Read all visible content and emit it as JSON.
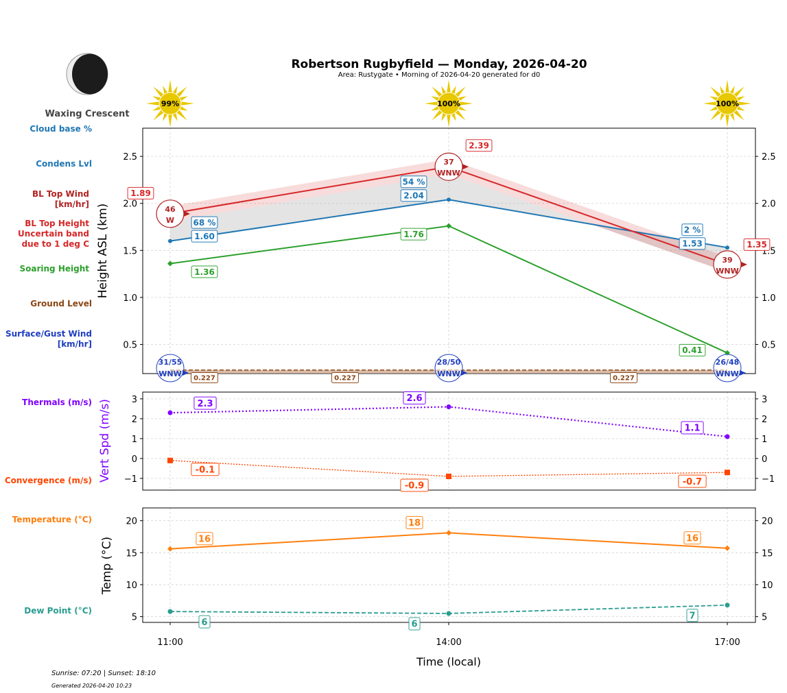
{
  "header": {
    "title": "Robertson Rugbyfield — Monday, 2026-04-20",
    "subtitle": "Area: Rustygate • Morning of 2026-04-20 generated for d0",
    "moon_phase": "Waxing Crescent",
    "moon_icon": "waxing-crescent-moon-icon",
    "sun_icon": "sun-icon"
  },
  "footer": {
    "sun_times": "Sunrise: 07:20 | Sunset: 18:10",
    "generated": "Generated 2026-04-20 10:23"
  },
  "legend_labels": {
    "cloud_base": "Cloud base %",
    "condens": "Condens Lvl",
    "bl_wind_1": "BL Top Wind",
    "bl_wind_2": "[km/hr]",
    "bl_top_1": "BL Top Height",
    "bl_top_2": "Uncertain band",
    "bl_top_3": "due to 1 deg C",
    "soaring": "Soaring Height",
    "ground": "Ground Level",
    "surface_1": "Surface/Gust Wind",
    "surface_2": "[km/hr]",
    "thermals": "Thermals (m/s)",
    "convergence": "Convergence (m/s)",
    "temperature": "Temperature (°C)",
    "dew": "Dew Point (°C)"
  },
  "colors": {
    "cloud": "#1f77b4",
    "bl_top": "#d62728",
    "bl_wind": "#b22222",
    "soaring": "#2ca02c",
    "ground": "#8b4513",
    "surface_wind": "#1f3fbf",
    "thermals": "#7f00ff",
    "convergence": "#ff4500",
    "temperature": "#ff7f0e",
    "dew": "#2a9d8f",
    "sun": "#e8c800"
  },
  "chart_data": [
    {
      "type": "line",
      "ylabel": "Height ASL (km)",
      "xlabel": "Time (local)",
      "categories": [
        "11:00",
        "14:00",
        "17:00"
      ],
      "ylim": [
        0.19,
        2.8
      ],
      "yticks": [
        "0.5",
        "1.0",
        "1.5",
        "2.0",
        "2.5"
      ],
      "yticks_values": [
        0.5,
        1.0,
        1.5,
        2.0,
        2.5
      ],
      "grid": true,
      "sun_percent": [
        "99%",
        "100%",
        "100%"
      ],
      "series": [
        {
          "key": "condens",
          "values": [
            1.6,
            2.04,
            1.53
          ],
          "labels": [
            "1.60",
            "2.04",
            "1.53"
          ],
          "cloud_pct": [
            "68 %",
            "54 %",
            "2 %"
          ]
        },
        {
          "key": "bl_top",
          "values": [
            1.89,
            2.39,
            1.35
          ],
          "labels": [
            "1.89",
            "2.39",
            "1.35"
          ],
          "band": 0.08,
          "wind_speed": [
            "46",
            "37",
            "39"
          ],
          "wind_dir": [
            "W",
            "WNW",
            "WNW"
          ]
        },
        {
          "key": "soaring",
          "values": [
            1.36,
            1.76,
            0.41
          ],
          "labels": [
            "1.36",
            "1.76",
            "0.41"
          ]
        },
        {
          "key": "ground",
          "values": [
            0.227,
            0.227,
            0.227
          ],
          "labels": [
            "0.227",
            "0.227",
            "0.227"
          ]
        },
        {
          "key": "surface_wind",
          "speed_gust": [
            "31/55",
            "28/50",
            "26/48"
          ],
          "wind_dir": [
            "WNW",
            "WNW",
            "WNW"
          ]
        }
      ]
    },
    {
      "type": "line",
      "ylabel": "Vert Spd (m/s)",
      "categories": [
        "11:00",
        "14:00",
        "17:00"
      ],
      "ylim": [
        -1.59,
        3.34
      ],
      "yticks": [
        "−1",
        "0",
        "1",
        "2",
        "3"
      ],
      "yticks_values": [
        -1,
        0,
        1,
        2,
        3
      ],
      "grid": true,
      "series": [
        {
          "key": "thermals",
          "values": [
            2.3,
            2.6,
            1.1
          ],
          "labels": [
            "2.3",
            "2.6",
            "1.1"
          ]
        },
        {
          "key": "convergence",
          "values": [
            -0.1,
            -0.9,
            -0.7
          ],
          "labels": [
            "-0.1",
            "-0.9",
            "-0.7"
          ]
        }
      ]
    },
    {
      "type": "line",
      "ylabel": "Temp (°C)",
      "categories": [
        "11:00",
        "14:00",
        "17:00"
      ],
      "ylim": [
        4.1,
        22.0
      ],
      "yticks": [
        "5",
        "10",
        "15",
        "20"
      ],
      "yticks_values": [
        5,
        10,
        15,
        20
      ],
      "grid": true,
      "series": [
        {
          "key": "temperature",
          "values": [
            15.6,
            18.1,
            15.7
          ],
          "labels": [
            "16",
            "18",
            "16"
          ]
        },
        {
          "key": "dew",
          "values": [
            5.8,
            5.5,
            6.8
          ],
          "labels": [
            "6",
            "6",
            "7"
          ]
        }
      ]
    }
  ]
}
